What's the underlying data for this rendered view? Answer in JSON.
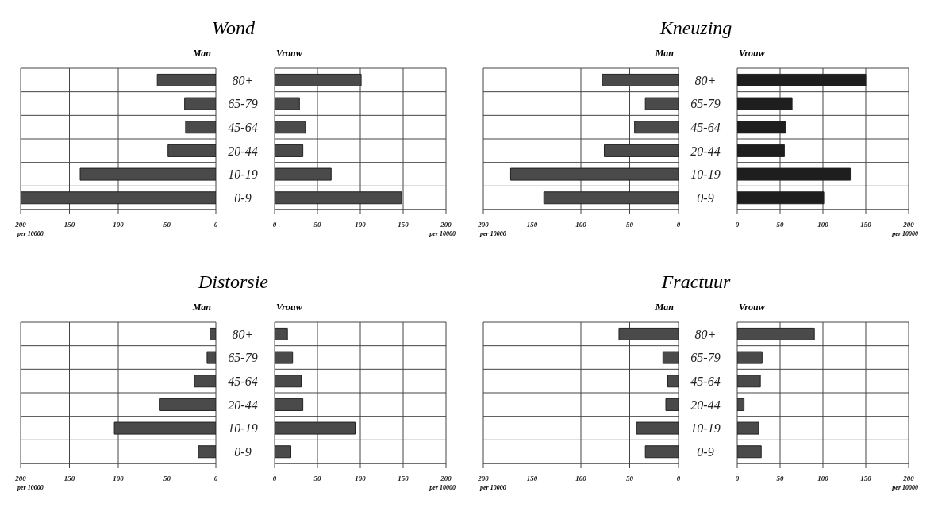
{
  "chart_data": [
    {
      "type": "bar",
      "orientation": "horizontal",
      "title": "Wond",
      "subtitle": "Man",
      "xlabel": "per 10000",
      "categories": [
        null,
        null,
        null,
        null,
        null,
        null
      ],
      "values": [
        60,
        32,
        31,
        49,
        139,
        200
      ],
      "color": "#4a4a4a",
      "xlim": [
        200,
        0
      ],
      "xticks": [
        200,
        150,
        100,
        50,
        0
      ],
      "grid": true,
      "tick_labels": "x"
    },
    {
      "type": "bar",
      "orientation": "horizontal",
      "subtitle": "Vrouw",
      "xlabel": "per 10000",
      "categories": [
        "80+",
        "65-79",
        "45-64",
        "20-44",
        "10-19",
        "0-9"
      ],
      "values": [
        101,
        29,
        36,
        33,
        66,
        148
      ],
      "color": "#4a4a4a",
      "xlim": [
        0,
        200
      ],
      "xticks": [
        0,
        50,
        100,
        150,
        200
      ],
      "grid": true
    },
    {
      "type": "bar",
      "orientation": "horizontal",
      "title": "Kneuzing",
      "subtitle": "Man",
      "xlabel": "per 10000",
      "categories": [
        null,
        null,
        null,
        null,
        null,
        null
      ],
      "values": [
        78,
        34,
        45,
        76,
        172,
        138
      ],
      "color": "#4a4a4a",
      "xlim": [
        200,
        0
      ],
      "xticks": [
        200,
        150,
        100,
        50,
        0
      ],
      "grid": true,
      "tick_labels": "x"
    },
    {
      "type": "bar",
      "orientation": "horizontal",
      "subtitle": "Vrouw",
      "xlabel": "per 10000",
      "categories": [
        "80+",
        "65-79",
        "45-64",
        "20-44",
        "10-19",
        "0-9"
      ],
      "values": [
        150,
        64,
        56,
        55,
        132,
        101
      ],
      "color": "#1e1e1e",
      "xlim": [
        0,
        200
      ],
      "xticks": [
        0,
        50,
        100,
        150,
        200
      ],
      "grid": true
    },
    {
      "type": "bar",
      "orientation": "horizontal",
      "title": "Distorsie",
      "subtitle": "Man",
      "xlabel": "per 10000",
      "categories": [
        null,
        null,
        null,
        null,
        null,
        null
      ],
      "values": [
        6,
        9,
        22,
        58,
        104,
        18
      ],
      "color": "#4a4a4a",
      "xlim": [
        200,
        0
      ],
      "xticks": [
        200,
        150,
        100,
        50,
        0
      ],
      "grid": true,
      "tick_labels": "x"
    },
    {
      "type": "bar",
      "orientation": "horizontal",
      "subtitle": "Vrouw",
      "xlabel": "per 10000",
      "categories": [
        "80+",
        "65-79",
        "45-64",
        "20-44",
        "10-19",
        "0-9"
      ],
      "values": [
        15,
        21,
        31,
        33,
        94,
        19
      ],
      "color": "#4a4a4a",
      "xlim": [
        0,
        200
      ],
      "xticks": [
        0,
        50,
        100,
        150,
        200
      ],
      "grid": true
    },
    {
      "type": "bar",
      "orientation": "horizontal",
      "title": "Fractuur",
      "subtitle": "Man",
      "xlabel": "per 10000",
      "categories": [
        null,
        null,
        null,
        null,
        null,
        null
      ],
      "values": [
        61,
        16,
        11,
        13,
        43,
        34
      ],
      "color": "#4a4a4a",
      "xlim": [
        200,
        0
      ],
      "xticks": [
        200,
        150,
        100,
        50,
        0
      ],
      "grid": true,
      "tick_labels": "x"
    },
    {
      "type": "bar",
      "orientation": "horizontal",
      "subtitle": "Vrouw",
      "xlabel": "per 10000",
      "categories": [
        "80+",
        "65-79",
        "45-64",
        "20-44",
        "10-19",
        "0-9"
      ],
      "values": [
        90,
        29,
        27,
        8,
        25,
        28
      ],
      "color": "#4a4a4a",
      "xlim": [
        0,
        200
      ],
      "xticks": [
        0,
        50,
        100,
        150,
        200
      ],
      "grid": true
    }
  ]
}
